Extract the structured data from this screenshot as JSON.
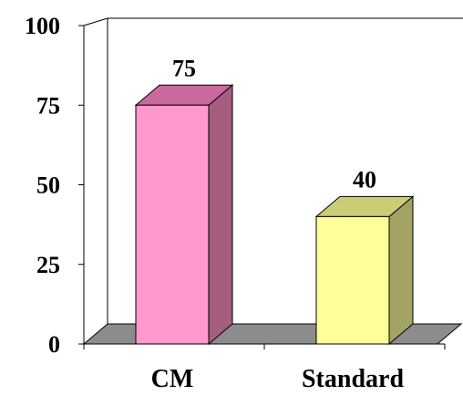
{
  "chart_data": {
    "type": "bar",
    "style": "3d",
    "categories": [
      "CM",
      "Standard"
    ],
    "values": [
      75,
      40
    ],
    "data_labels": [
      "75",
      "40"
    ],
    "ylim": [
      0,
      100
    ],
    "yticks": [
      0,
      25,
      50,
      75,
      100
    ],
    "ytick_labels": [
      "0",
      "25",
      "50",
      "75",
      "100"
    ],
    "title": "",
    "xlabel": "",
    "ylabel": "",
    "grid": false,
    "legend": "none",
    "colors": {
      "bars": [
        "#ff99cc",
        "#ffff99"
      ],
      "bar_tops": [
        "#c9699e",
        "#cccc77"
      ],
      "bar_sides": [
        "#a55e80",
        "#a3a364"
      ],
      "floor": "#8c8c8c",
      "axis": "#000000"
    }
  }
}
